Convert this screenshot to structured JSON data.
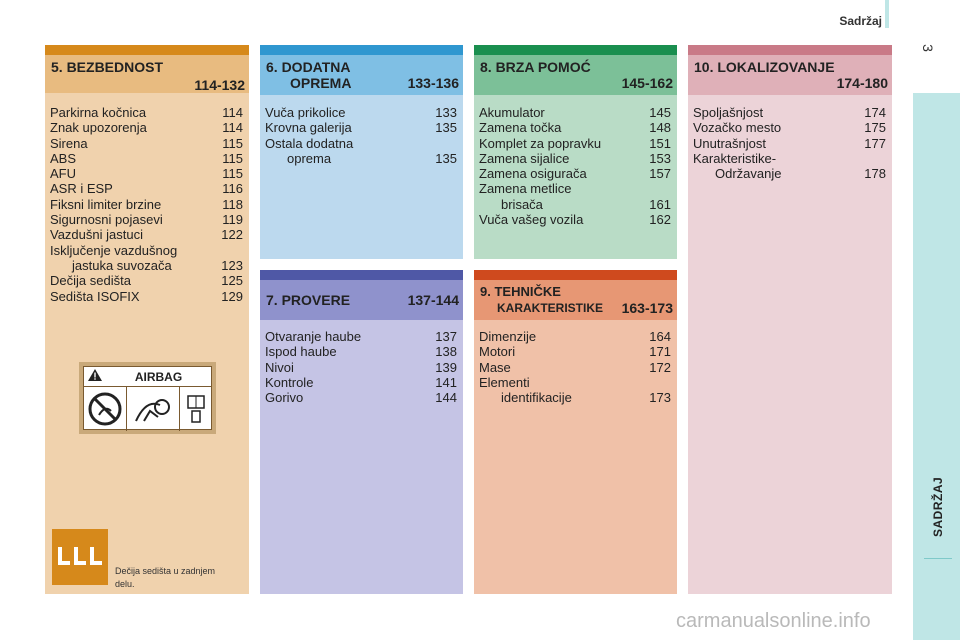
{
  "header": {
    "title": "Sadržaj",
    "page_number": "3"
  },
  "sidebar": {
    "label": "SADRŽAJ"
  },
  "sections": {
    "s5": {
      "title": "5. BEZBEDNOST",
      "range": "114-132",
      "items": [
        {
          "label": "Parkirna kočnica",
          "page": "114"
        },
        {
          "label": "Znak upozorenja",
          "page": "114"
        },
        {
          "label": "Sirena",
          "page": "115"
        },
        {
          "label": "ABS",
          "page": "115"
        },
        {
          "label": "AFU",
          "page": "115"
        },
        {
          "label": "ASR i ESP",
          "page": "116"
        },
        {
          "label": "Fiksni limiter brzine",
          "page": "118"
        },
        {
          "label": "Sigurnosni pojasevi",
          "page": "119"
        },
        {
          "label": "Vazdušni jastuci",
          "page": "122"
        },
        {
          "label": "Isključenje vazdušnog",
          "page": ""
        },
        {
          "label": "jastuka suvozača",
          "page": "123",
          "indent": true
        },
        {
          "label": "Dečija sedišta",
          "page": "125"
        },
        {
          "label": "Sedišta ISOFIX",
          "page": "129"
        }
      ],
      "airbag_label": "AIRBAG",
      "seat_caption": "Dečija sedišta u zadnjem delu."
    },
    "s6": {
      "title_line1": "6. DODATNA",
      "title_line2": "OPREMA",
      "range": "133-136",
      "items": [
        {
          "label": "Vuča prikolice",
          "page": "133"
        },
        {
          "label": "Krovna galerija",
          "page": "135"
        },
        {
          "label": "Ostala dodatna",
          "page": ""
        },
        {
          "label": "oprema",
          "page": "135",
          "indent": true
        }
      ]
    },
    "s7": {
      "title": "7. PROVERE",
      "range": "137-144",
      "items": [
        {
          "label": "Otvaranje haube",
          "page": "137"
        },
        {
          "label": "Ispod haube",
          "page": "138"
        },
        {
          "label": "Nivoi",
          "page": "139"
        },
        {
          "label": "Kontrole",
          "page": "141"
        },
        {
          "label": "Gorivo",
          "page": "144"
        }
      ]
    },
    "s8": {
      "title": "8. BRZA POMOĆ",
      "range": "145-162",
      "items": [
        {
          "label": "Akumulator",
          "page": "145"
        },
        {
          "label": "Zamena točka",
          "page": "148"
        },
        {
          "label": "Komplet za popravku",
          "page": "151"
        },
        {
          "label": "Zamena sijalice",
          "page": "153"
        },
        {
          "label": "Zamena osigurača",
          "page": "157"
        },
        {
          "label": "Zamena metlice",
          "page": ""
        },
        {
          "label": "brisača",
          "page": "161",
          "indent": true
        },
        {
          "label": "Vuča vašeg vozila",
          "page": "162"
        }
      ]
    },
    "s9": {
      "title_line1": "9. TEHNIČKE",
      "title_line2": "KARAKTERISTIKE",
      "range": "163-173",
      "items": [
        {
          "label": "Dimenzije",
          "page": "164"
        },
        {
          "label": "Motori",
          "page": "171"
        },
        {
          "label": "Mase",
          "page": "172"
        },
        {
          "label": "Elementi",
          "page": ""
        },
        {
          "label": "identifikacije",
          "page": "173",
          "indent": true
        }
      ]
    },
    "s10": {
      "title": "10. LOKALIZOVANJE",
      "range": "174-180",
      "items": [
        {
          "label": "Spoljašnjost",
          "page": "174"
        },
        {
          "label": "Vozačko mesto",
          "page": "175"
        },
        {
          "label": "Unutrašnjost",
          "page": "177"
        },
        {
          "label": "Karakteristike-",
          "page": ""
        },
        {
          "label": "Održavanje",
          "page": "178",
          "indent": true
        }
      ]
    }
  },
  "watermark": "carmanualsonline.info",
  "icons": {
    "warning": "warning-triangle-icon",
    "seat": "child-seat-icon"
  }
}
